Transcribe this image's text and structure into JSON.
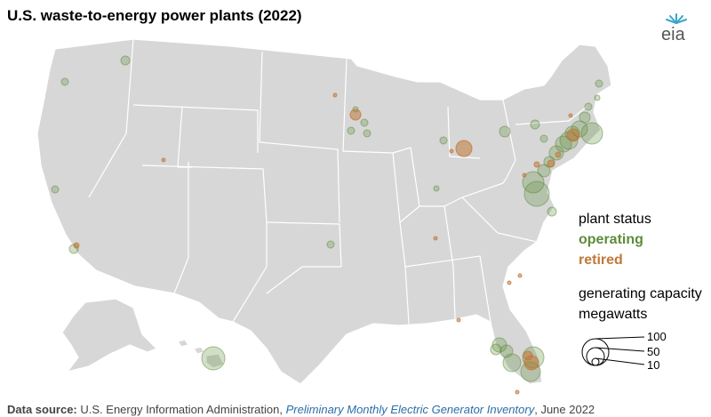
{
  "title": "U.S. waste-to-energy power plants (2022)",
  "logo": {
    "text": "eia",
    "icon": "eia-sunrise-logo"
  },
  "legend": {
    "status_heading": "plant status",
    "operating": "operating",
    "retired": "retired",
    "capacity_heading_1": "generating capacity",
    "capacity_heading_2": "megawatts",
    "sizes": [
      "100",
      "50",
      "10"
    ]
  },
  "colors": {
    "land": "#d7d7d7",
    "borders": "#ffffff",
    "operating": "#5e8c3a",
    "retired": "#c0793a",
    "source_label": "#444444",
    "source_link": "#2a6fa8"
  },
  "source": {
    "label": "Data source:",
    "org": "U.S. Energy Information Administration,",
    "publication": "Preliminary Monthly Electric Generator Inventory",
    "date": ", June 2022"
  }
}
